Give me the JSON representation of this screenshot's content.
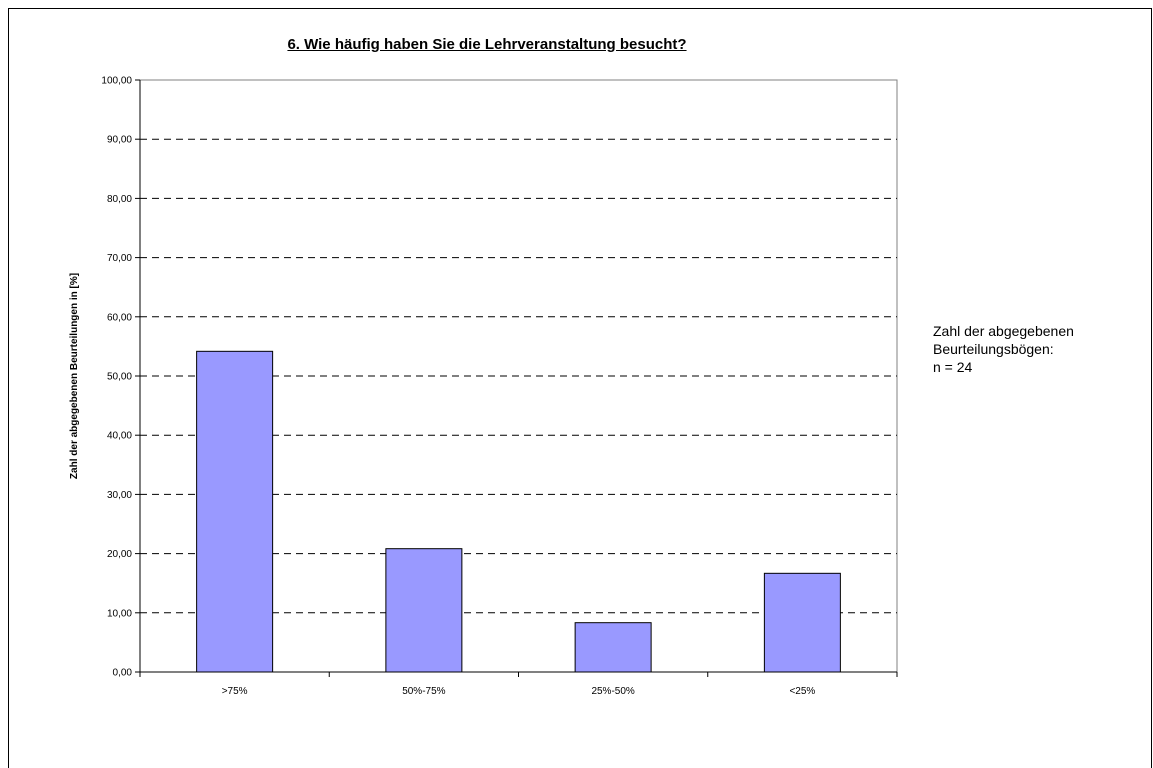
{
  "chart_data": {
    "type": "bar",
    "title": "6. Wie häufig haben Sie die Lehrveranstaltung besucht?",
    "xlabel": "",
    "ylabel": "Zahl der abgegebenen Beurteilungen in [%]",
    "categories": [
      ">75%",
      "50%-75%",
      "25%-50%",
      "<25%"
    ],
    "values": [
      54.17,
      20.83,
      8.33,
      16.67
    ],
    "ylim": [
      0,
      100
    ],
    "yticks": [
      "0,00",
      "10,00",
      "20,00",
      "30,00",
      "40,00",
      "50,00",
      "60,00",
      "70,00",
      "80,00",
      "90,00",
      "100,00"
    ],
    "grid": true,
    "bar_color": "#9999ff",
    "legend": "none"
  },
  "note": {
    "line1": "Zahl der abgegebenen",
    "line2": "Beurteilungsbögen:",
    "line3": "n = 24"
  }
}
